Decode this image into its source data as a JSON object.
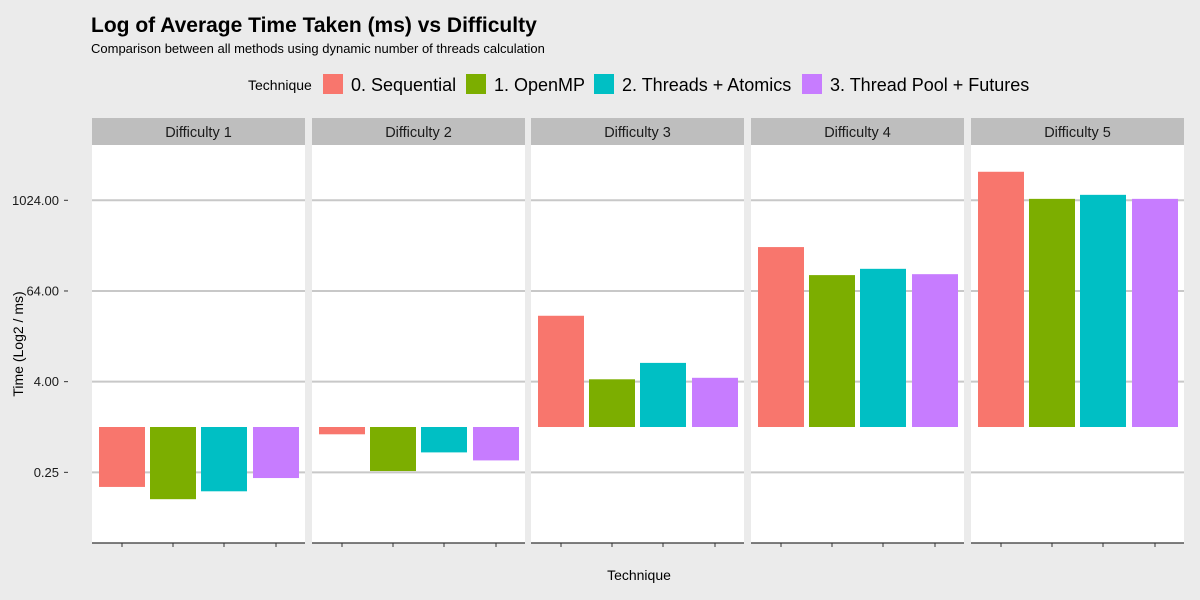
{
  "chart_data": {
    "type": "bar",
    "title": "Log of Average Time Taken (ms) vs Difficulty",
    "subtitle": "Comparison between all methods using dynamic number of threads calculation",
    "xlabel": "Technique",
    "ylabel": "Time (Log2 / ms)",
    "y_scale": "log2",
    "y_baseline": 1,
    "y_ticks": [
      0.25,
      4,
      64,
      1024
    ],
    "y_tick_labels": [
      "0.25",
      "4.00",
      "64.00",
      "1024.00"
    ],
    "ylim": [
      0.0625,
      4096
    ],
    "grid": true,
    "legend_position": "top",
    "legend_title": "Technique",
    "facets": [
      "Difficulty 1",
      "Difficulty 2",
      "Difficulty 3",
      "Difficulty 4",
      "Difficulty 5"
    ],
    "series": [
      {
        "name": "0. Sequential",
        "color": "#F8766D",
        "values": [
          0.16,
          0.8,
          30,
          245,
          2450
        ]
      },
      {
        "name": "1. OpenMP",
        "color": "#7CAE00",
        "values": [
          0.11,
          0.26,
          4.3,
          104,
          1070
        ]
      },
      {
        "name": "2. Threads + Atomics",
        "color": "#00BFC4",
        "values": [
          0.14,
          0.46,
          7.1,
          126,
          1210
        ]
      },
      {
        "name": "3. Thread Pool + Futures",
        "color": "#C77CFF",
        "values": [
          0.21,
          0.36,
          4.5,
          107,
          1070
        ]
      }
    ]
  }
}
